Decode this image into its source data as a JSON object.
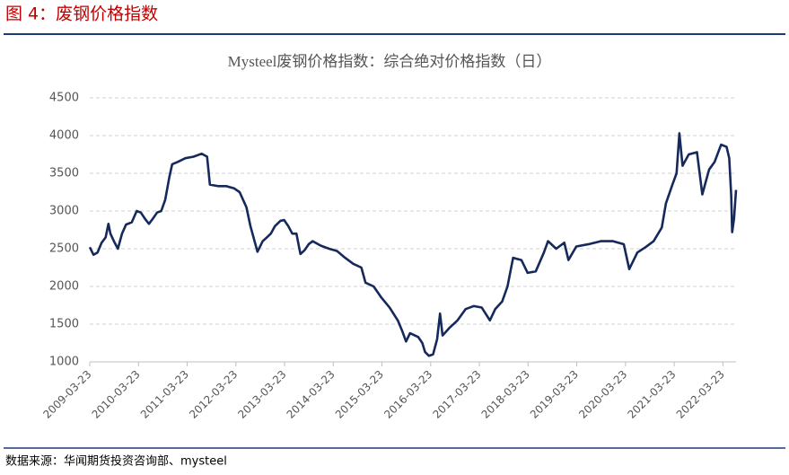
{
  "figure_title": "图 4：废钢价格指数",
  "source": "数据来源：华闻期货投资咨询部、mysteel",
  "chart_data": {
    "type": "line",
    "title": "Mysteel废钢价格指数：综合绝对价格指数（日）",
    "x": [
      "2009-03-23",
      "2009-04-20",
      "2009-05-20",
      "2009-06-20",
      "2009-07-20",
      "2009-08-10",
      "2009-08-25",
      "2009-09-20",
      "2009-10-20",
      "2009-11-20",
      "2009-12-20",
      "2010-02-01",
      "2010-03-10",
      "2010-04-10",
      "2010-05-10",
      "2010-06-10",
      "2010-07-10",
      "2010-08-10",
      "2010-09-10",
      "2010-10-10",
      "2010-11-10",
      "2010-12-01",
      "2011-01-10",
      "2011-03-10",
      "2011-05-10",
      "2011-07-10",
      "2011-08-20",
      "2011-09-10",
      "2011-11-10",
      "2012-01-10",
      "2012-03-10",
      "2012-04-20",
      "2012-06-10",
      "2012-07-10",
      "2012-08-10",
      "2012-09-01",
      "2012-10-10",
      "2012-11-10",
      "2012-12-10",
      "2013-01-10",
      "2013-02-20",
      "2013-03-20",
      "2013-04-20",
      "2013-05-20",
      "2013-06-20",
      "2013-07-20",
      "2013-08-20",
      "2013-09-20",
      "2013-10-20",
      "2013-12-20",
      "2014-02-20",
      "2014-04-20",
      "2014-06-20",
      "2014-08-20",
      "2014-10-20",
      "2014-11-20",
      "2015-01-20",
      "2015-03-20",
      "2015-05-20",
      "2015-07-20",
      "2015-08-20",
      "2015-09-20",
      "2015-10-20",
      "2015-12-20",
      "2016-01-20",
      "2016-02-10",
      "2016-03-10",
      "2016-04-10",
      "2016-05-10",
      "2016-06-01",
      "2016-06-20",
      "2016-08-10",
      "2016-10-10",
      "2016-12-10",
      "2017-02-10",
      "2017-04-10",
      "2017-06-10",
      "2017-07-20",
      "2017-09-10",
      "2017-10-20",
      "2017-12-01",
      "2018-02-01",
      "2018-03-20",
      "2018-05-20",
      "2018-07-20",
      "2018-08-20",
      "2018-10-20",
      "2018-12-20",
      "2019-01-20",
      "2019-03-20",
      "2019-06-20",
      "2019-09-20",
      "2019-12-20",
      "2020-03-10",
      "2020-04-20",
      "2020-06-20",
      "2020-08-20",
      "2020-10-20",
      "2020-12-20",
      "2021-01-20",
      "2021-03-10",
      "2021-04-10",
      "2021-05-01",
      "2021-05-25",
      "2021-07-10",
      "2021-09-10",
      "2021-10-20",
      "2021-12-10",
      "2022-01-20",
      "2022-03-10",
      "2022-04-20",
      "2022-05-10",
      "2022-05-25",
      "2022-06-01",
      "2022-06-15",
      "2022-06-30"
    ],
    "series": [
      {
        "name": "Mysteel废钢价格指数",
        "color": "#15295b",
        "values": [
          2520,
          2420,
          2450,
          2580,
          2650,
          2830,
          2700,
          2600,
          2500,
          2700,
          2820,
          2850,
          3000,
          2980,
          2900,
          2830,
          2900,
          2980,
          3000,
          3150,
          3450,
          3620,
          3650,
          3700,
          3720,
          3760,
          3720,
          3350,
          3330,
          3330,
          3300,
          3250,
          3050,
          2800,
          2600,
          2460,
          2600,
          2650,
          2700,
          2800,
          2870,
          2880,
          2800,
          2700,
          2700,
          2430,
          2480,
          2560,
          2600,
          2540,
          2500,
          2470,
          2380,
          2300,
          2250,
          2050,
          2000,
          1850,
          1720,
          1550,
          1420,
          1270,
          1380,
          1330,
          1250,
          1130,
          1080,
          1100,
          1300,
          1640,
          1350,
          1450,
          1550,
          1700,
          1740,
          1720,
          1550,
          1700,
          1800,
          2000,
          2380,
          2350,
          2180,
          2200,
          2450,
          2600,
          2500,
          2580,
          2350,
          2530,
          2560,
          2600,
          2600,
          2560,
          2230,
          2450,
          2520,
          2600,
          2780,
          3100,
          3350,
          3500,
          4030,
          3600,
          3750,
          3780,
          3220,
          3550,
          3650,
          3880,
          3850,
          3700,
          3200,
          2720,
          2900,
          3280
        ]
      }
    ],
    "xlim": [
      "2009-03-23",
      "2022-06-30"
    ],
    "xticks": [
      "2009-03-23",
      "2010-03-23",
      "2011-03-23",
      "2012-03-23",
      "2013-03-23",
      "2014-03-23",
      "2015-03-23",
      "2016-03-23",
      "2017-03-23",
      "2018-03-23",
      "2019-03-23",
      "2020-03-23",
      "2021-03-23",
      "2022-03-23"
    ],
    "ylim": [
      1000,
      4500
    ],
    "yticks": [
      1000,
      1500,
      2000,
      2500,
      3000,
      3500,
      4000,
      4500
    ],
    "grid": true
  }
}
